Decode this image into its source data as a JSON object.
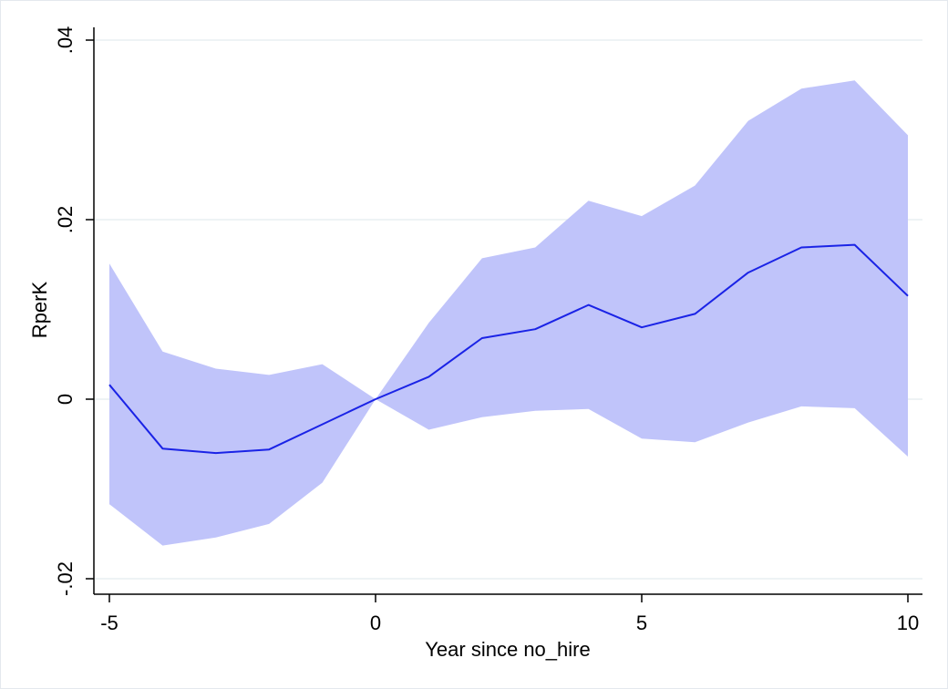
{
  "chart_data": {
    "type": "line",
    "xlabel": "Year since no_hire",
    "ylabel": "RperK",
    "xlim": [
      -5,
      10
    ],
    "ylim": [
      -0.02,
      0.04
    ],
    "x_ticks": [
      -5,
      0,
      5,
      10
    ],
    "x_tick_labels": [
      "-5",
      "0",
      "5",
      "10"
    ],
    "y_ticks": [
      -0.02,
      0,
      0.02,
      0.04
    ],
    "y_tick_labels": [
      "-.02",
      "0",
      ".02",
      ".04"
    ],
    "grid": true,
    "legend": "none",
    "x": [
      -5,
      -4,
      -3,
      -2,
      -1,
      0,
      1,
      2,
      3,
      4,
      5,
      6,
      7,
      8,
      9,
      10
    ],
    "series": [
      {
        "values": [
          0.0016,
          -0.0055,
          -0.006,
          -0.0056,
          -0.0028,
          0.0,
          0.0025,
          0.0068,
          0.0078,
          0.0105,
          0.008,
          0.0095,
          0.0141,
          0.0169,
          0.0172,
          0.0115
        ],
        "ci_upper": [
          0.0151,
          0.0053,
          0.0034,
          0.0027,
          0.0039,
          0.0,
          0.0085,
          0.0157,
          0.0169,
          0.0221,
          0.0204,
          0.0238,
          0.031,
          0.0346,
          0.0355,
          0.0294
        ],
        "ci_lower": [
          -0.0117,
          -0.0163,
          -0.0154,
          -0.0139,
          -0.0093,
          0.0,
          -0.0034,
          -0.002,
          -0.0013,
          -0.0011,
          -0.0044,
          -0.0048,
          -0.0026,
          -0.0008,
          -0.001,
          -0.0064
        ]
      }
    ],
    "colors": {
      "line": "#1a23e6",
      "band": "#c0c4fa",
      "grid": "#e8eff2",
      "axis": "#000000"
    }
  }
}
